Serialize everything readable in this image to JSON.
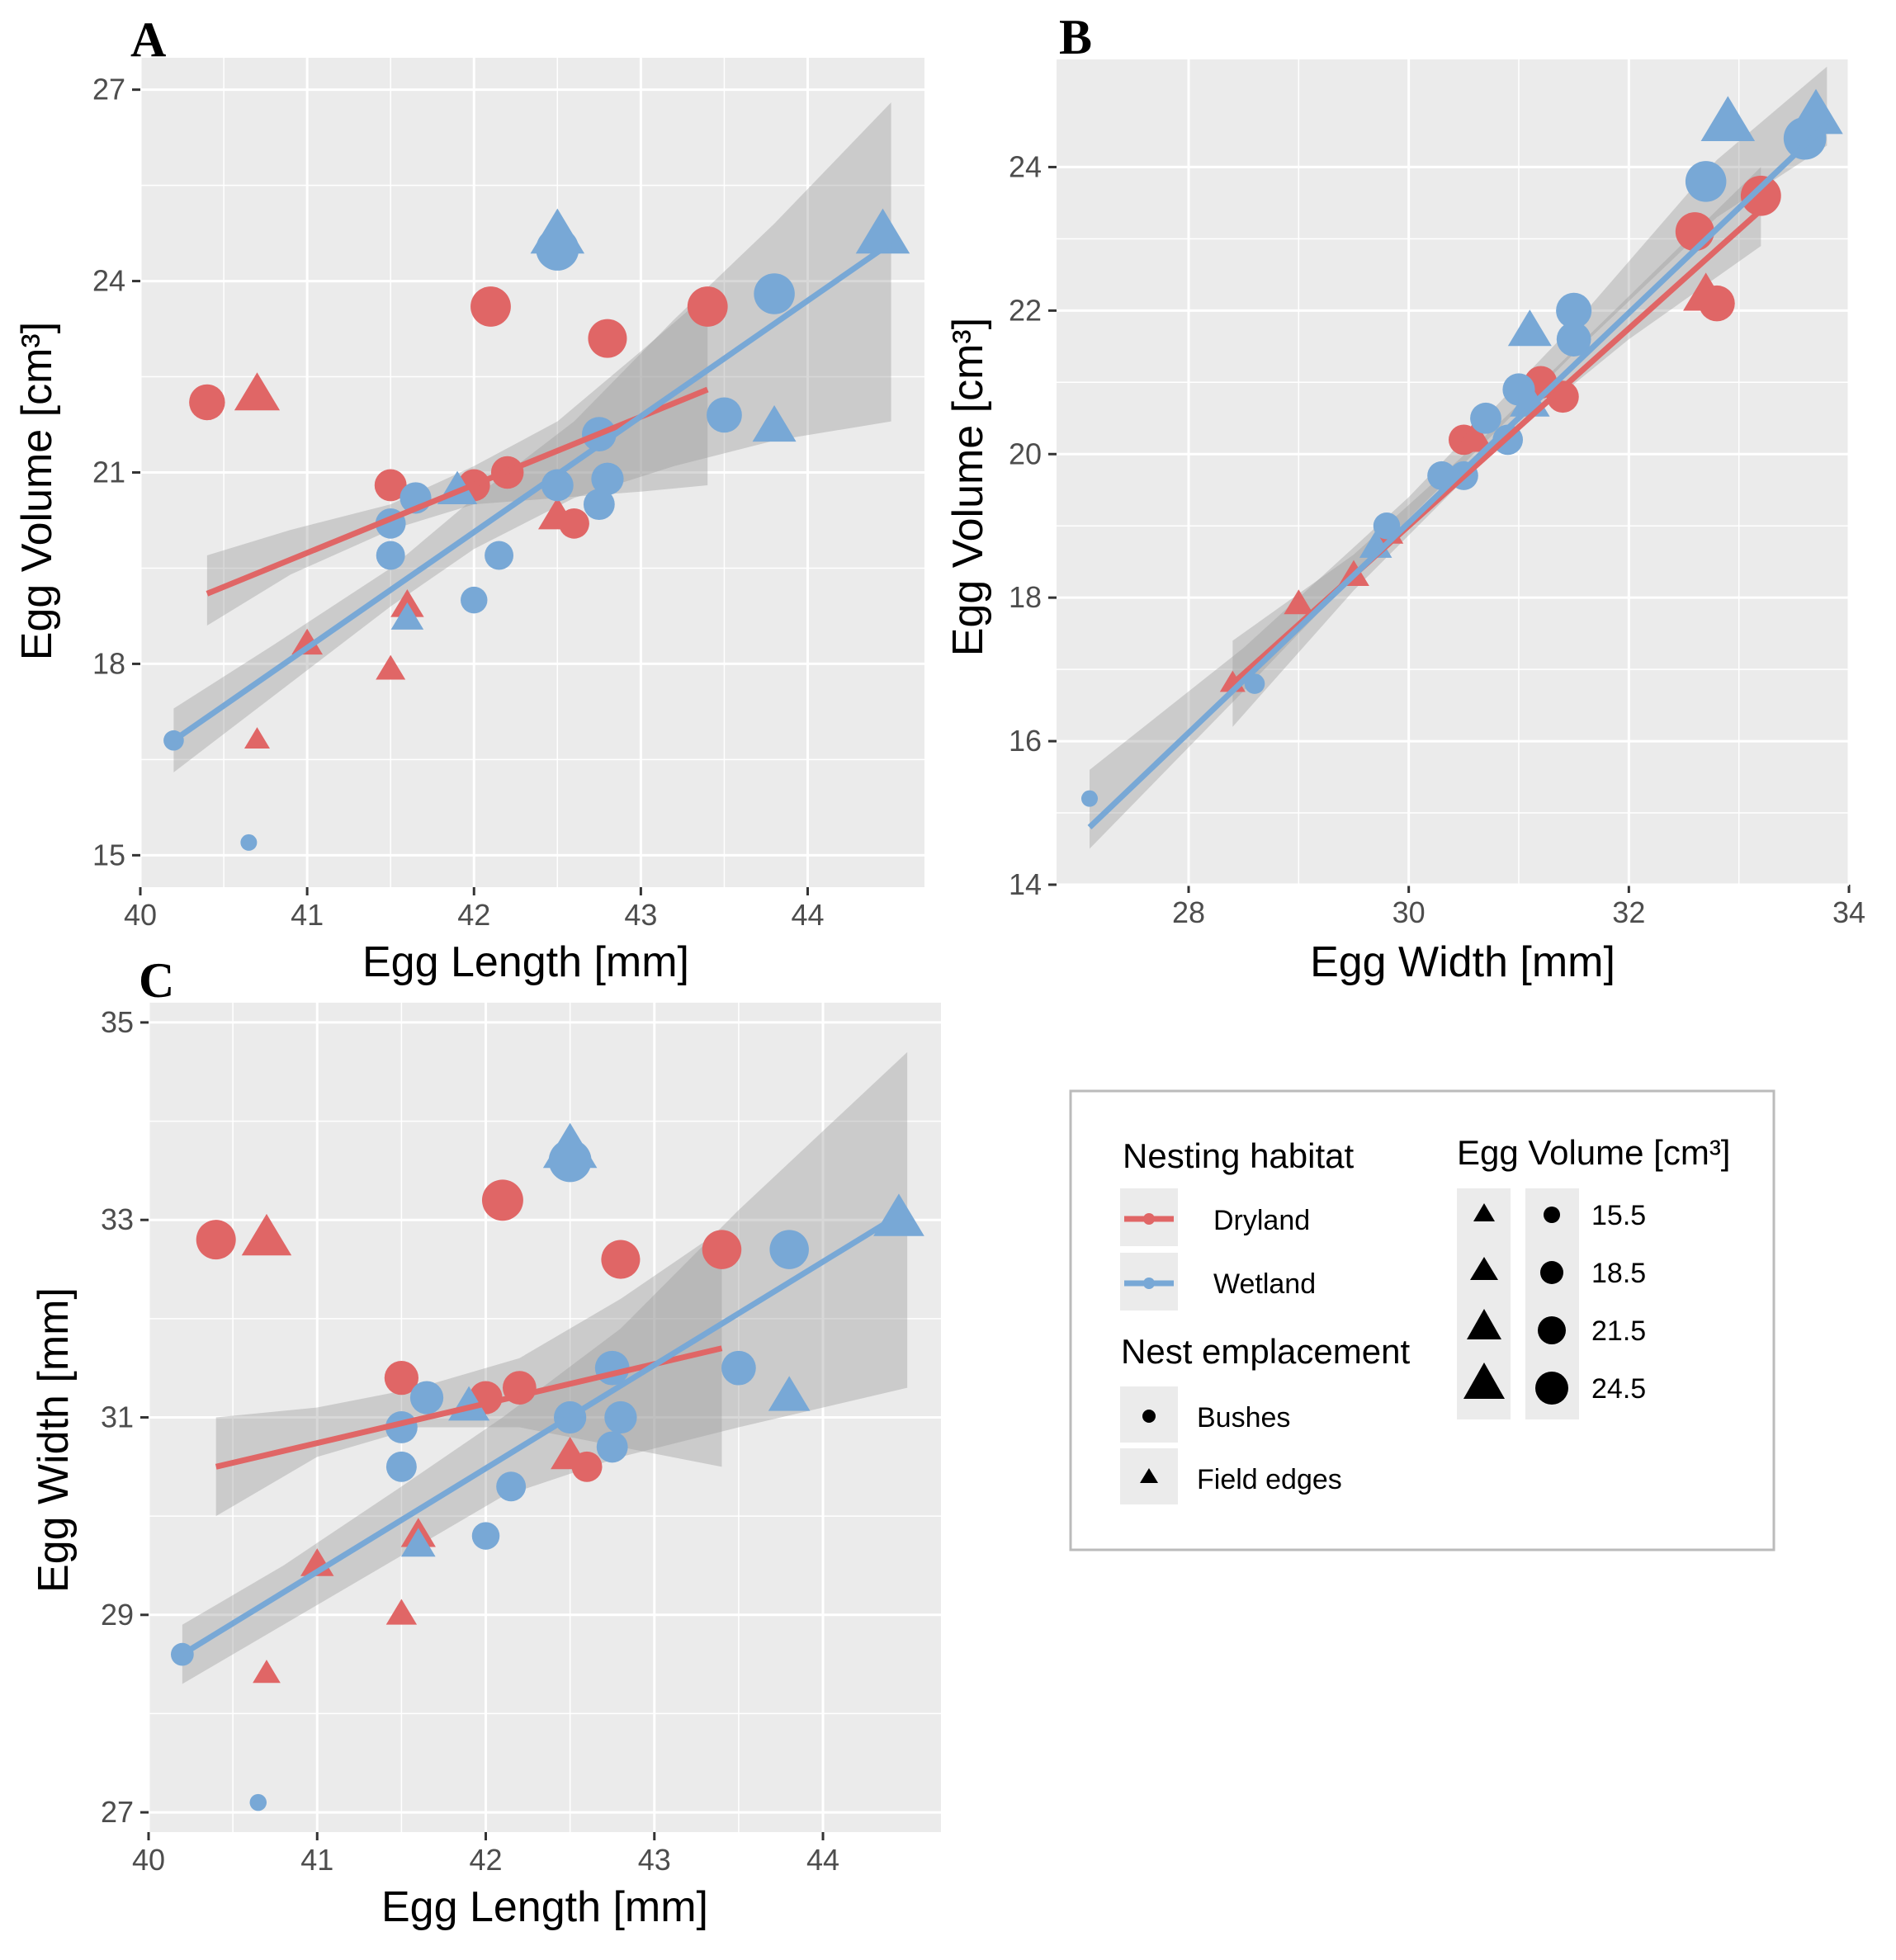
{
  "colors": {
    "Dryland": "#e06666",
    "Wetland": "#78a8d6",
    "panel_bg": "#ebebeb",
    "grid": "#ffffff",
    "ribbon": "#999999"
  },
  "size_scale": {
    "values": [
      15.5,
      18.5,
      21.5,
      24.5
    ]
  },
  "chart_data": [
    {
      "type": "scatter",
      "panel_label": "A",
      "xlabel": "Egg Length [mm]",
      "ylabel": "Egg Volume [cm³]",
      "xlim": [
        40,
        44.7
      ],
      "ylim": [
        14.5,
        27.5
      ],
      "xticks": [
        40,
        41,
        42,
        43,
        44
      ],
      "yticks": [
        15,
        18,
        21,
        24,
        27
      ],
      "points": [
        {
          "x": 40.4,
          "y": 22.1,
          "habitat": "Dryland",
          "shape": "circle"
        },
        {
          "x": 40.7,
          "y": 22.2,
          "habitat": "Dryland",
          "shape": "triangle"
        },
        {
          "x": 40.7,
          "y": 16.8,
          "habitat": "Dryland",
          "shape": "triangle"
        },
        {
          "x": 41.0,
          "y": 18.3,
          "habitat": "Dryland",
          "shape": "triangle"
        },
        {
          "x": 41.5,
          "y": 17.9,
          "habitat": "Dryland",
          "shape": "triangle"
        },
        {
          "x": 41.5,
          "y": 20.8,
          "habitat": "Dryland",
          "shape": "circle"
        },
        {
          "x": 41.6,
          "y": 18.9,
          "habitat": "Dryland",
          "shape": "triangle"
        },
        {
          "x": 42.0,
          "y": 20.8,
          "habitat": "Dryland",
          "shape": "circle"
        },
        {
          "x": 42.1,
          "y": 23.6,
          "habitat": "Dryland",
          "shape": "circle"
        },
        {
          "x": 42.2,
          "y": 21.0,
          "habitat": "Dryland",
          "shape": "circle"
        },
        {
          "x": 42.5,
          "y": 20.3,
          "habitat": "Dryland",
          "shape": "triangle"
        },
        {
          "x": 42.6,
          "y": 20.2,
          "habitat": "Dryland",
          "shape": "circle"
        },
        {
          "x": 42.8,
          "y": 23.1,
          "habitat": "Dryland",
          "shape": "circle"
        },
        {
          "x": 43.4,
          "y": 23.6,
          "habitat": "Dryland",
          "shape": "circle"
        },
        {
          "x": 40.2,
          "y": 16.8,
          "habitat": "Wetland",
          "shape": "circle"
        },
        {
          "x": 40.65,
          "y": 15.2,
          "habitat": "Wetland",
          "shape": "circle"
        },
        {
          "x": 41.5,
          "y": 19.7,
          "habitat": "Wetland",
          "shape": "circle"
        },
        {
          "x": 41.5,
          "y": 20.2,
          "habitat": "Wetland",
          "shape": "circle"
        },
        {
          "x": 41.6,
          "y": 18.7,
          "habitat": "Wetland",
          "shape": "triangle"
        },
        {
          "x": 41.65,
          "y": 20.6,
          "habitat": "Wetland",
          "shape": "circle"
        },
        {
          "x": 41.9,
          "y": 20.7,
          "habitat": "Wetland",
          "shape": "triangle"
        },
        {
          "x": 42.0,
          "y": 19.0,
          "habitat": "Wetland",
          "shape": "circle"
        },
        {
          "x": 42.15,
          "y": 19.7,
          "habitat": "Wetland",
          "shape": "circle"
        },
        {
          "x": 42.5,
          "y": 20.8,
          "habitat": "Wetland",
          "shape": "circle"
        },
        {
          "x": 42.5,
          "y": 24.5,
          "habitat": "Wetland",
          "shape": "circle"
        },
        {
          "x": 42.5,
          "y": 24.7,
          "habitat": "Wetland",
          "shape": "triangle"
        },
        {
          "x": 42.75,
          "y": 20.5,
          "habitat": "Wetland",
          "shape": "circle"
        },
        {
          "x": 42.75,
          "y": 21.6,
          "habitat": "Wetland",
          "shape": "circle"
        },
        {
          "x": 42.8,
          "y": 20.9,
          "habitat": "Wetland",
          "shape": "circle"
        },
        {
          "x": 43.5,
          "y": 21.9,
          "habitat": "Wetland",
          "shape": "circle"
        },
        {
          "x": 43.8,
          "y": 21.7,
          "habitat": "Wetland",
          "shape": "triangle"
        },
        {
          "x": 43.8,
          "y": 23.8,
          "habitat": "Wetland",
          "shape": "circle"
        },
        {
          "x": 44.45,
          "y": 24.7,
          "habitat": "Wetland",
          "shape": "triangle"
        }
      ],
      "fits": [
        {
          "habitat": "Dryland",
          "x": [
            40.4,
            43.4
          ],
          "y": [
            19.1,
            22.3
          ],
          "ribbon": [
            {
              "x": 40.4,
              "lo": 18.6,
              "hi": 19.7
            },
            {
              "x": 40.9,
              "lo": 19.4,
              "hi": 20.1
            },
            {
              "x": 41.5,
              "lo": 20.1,
              "hi": 20.5
            },
            {
              "x": 42.0,
              "lo": 20.5,
              "hi": 21.1
            },
            {
              "x": 42.5,
              "lo": 20.6,
              "hi": 21.8
            },
            {
              "x": 43.0,
              "lo": 20.7,
              "hi": 22.9
            },
            {
              "x": 43.4,
              "lo": 20.8,
              "hi": 23.8
            }
          ]
        },
        {
          "habitat": "Wetland",
          "x": [
            40.2,
            44.5
          ],
          "y": [
            16.8,
            24.6
          ],
          "ribbon": [
            {
              "x": 40.2,
              "lo": 16.3,
              "hi": 17.3
            },
            {
              "x": 40.8,
              "lo": 17.5,
              "hi": 18.3
            },
            {
              "x": 41.5,
              "lo": 18.9,
              "hi": 19.5
            },
            {
              "x": 42.0,
              "lo": 19.8,
              "hi": 20.6
            },
            {
              "x": 42.6,
              "lo": 20.6,
              "hi": 21.8
            },
            {
              "x": 43.2,
              "lo": 21.1,
              "hi": 23.4
            },
            {
              "x": 43.8,
              "lo": 21.5,
              "hi": 24.9
            },
            {
              "x": 44.5,
              "lo": 21.8,
              "hi": 26.8
            }
          ]
        }
      ]
    },
    {
      "type": "scatter",
      "panel_label": "B",
      "xlabel": "Egg Width [mm]",
      "ylabel": "Egg Volume [cm³]",
      "xlim": [
        26.8,
        34.0
      ],
      "ylim": [
        14,
        25.5
      ],
      "xticks": [
        28,
        30,
        32,
        34
      ],
      "yticks": [
        14,
        16,
        18,
        20,
        22,
        24
      ],
      "points": [
        {
          "x": 28.4,
          "y": 16.8,
          "habitat": "Dryland",
          "shape": "triangle"
        },
        {
          "x": 29.0,
          "y": 17.9,
          "habitat": "Dryland",
          "shape": "triangle"
        },
        {
          "x": 29.5,
          "y": 18.3,
          "habitat": "Dryland",
          "shape": "triangle"
        },
        {
          "x": 29.8,
          "y": 18.9,
          "habitat": "Dryland",
          "shape": "triangle"
        },
        {
          "x": 30.5,
          "y": 20.2,
          "habitat": "Dryland",
          "shape": "circle"
        },
        {
          "x": 30.6,
          "y": 20.2,
          "habitat": "Dryland",
          "shape": "triangle"
        },
        {
          "x": 31.2,
          "y": 21.0,
          "habitat": "Dryland",
          "shape": "circle"
        },
        {
          "x": 31.4,
          "y": 20.8,
          "habitat": "Dryland",
          "shape": "circle"
        },
        {
          "x": 32.6,
          "y": 23.1,
          "habitat": "Dryland",
          "shape": "circle"
        },
        {
          "x": 32.7,
          "y": 22.2,
          "habitat": "Dryland",
          "shape": "triangle"
        },
        {
          "x": 32.8,
          "y": 22.1,
          "habitat": "Dryland",
          "shape": "circle"
        },
        {
          "x": 33.2,
          "y": 23.6,
          "habitat": "Dryland",
          "shape": "circle"
        },
        {
          "x": 27.1,
          "y": 15.2,
          "habitat": "Wetland",
          "shape": "circle"
        },
        {
          "x": 28.6,
          "y": 16.8,
          "habitat": "Wetland",
          "shape": "circle"
        },
        {
          "x": 29.7,
          "y": 18.7,
          "habitat": "Wetland",
          "shape": "triangle"
        },
        {
          "x": 29.8,
          "y": 19.0,
          "habitat": "Wetland",
          "shape": "circle"
        },
        {
          "x": 30.3,
          "y": 19.7,
          "habitat": "Wetland",
          "shape": "circle"
        },
        {
          "x": 30.5,
          "y": 19.7,
          "habitat": "Wetland",
          "shape": "circle"
        },
        {
          "x": 30.7,
          "y": 20.5,
          "habitat": "Wetland",
          "shape": "circle"
        },
        {
          "x": 30.9,
          "y": 20.2,
          "habitat": "Wetland",
          "shape": "circle"
        },
        {
          "x": 31.0,
          "y": 20.9,
          "habitat": "Wetland",
          "shape": "circle"
        },
        {
          "x": 31.1,
          "y": 20.7,
          "habitat": "Wetland",
          "shape": "triangle"
        },
        {
          "x": 31.1,
          "y": 21.7,
          "habitat": "Wetland",
          "shape": "triangle"
        },
        {
          "x": 31.5,
          "y": 21.6,
          "habitat": "Wetland",
          "shape": "circle"
        },
        {
          "x": 31.5,
          "y": 22.0,
          "habitat": "Wetland",
          "shape": "circle"
        },
        {
          "x": 32.7,
          "y": 23.8,
          "habitat": "Wetland",
          "shape": "circle"
        },
        {
          "x": 32.9,
          "y": 24.6,
          "habitat": "Wetland",
          "shape": "triangle"
        },
        {
          "x": 33.6,
          "y": 24.4,
          "habitat": "Wetland",
          "shape": "circle"
        },
        {
          "x": 33.7,
          "y": 24.7,
          "habitat": "Wetland",
          "shape": "triangle"
        }
      ],
      "fits": [
        {
          "habitat": "Dryland",
          "x": [
            28.4,
            33.2
          ],
          "y": [
            16.8,
            23.4
          ],
          "ribbon": [
            {
              "x": 28.4,
              "lo": 16.2,
              "hi": 17.4
            },
            {
              "x": 29.5,
              "lo": 18.1,
              "hi": 18.6
            },
            {
              "x": 30.8,
              "lo": 20.1,
              "hi": 20.4
            },
            {
              "x": 32.0,
              "lo": 21.6,
              "hi": 22.2
            },
            {
              "x": 33.2,
              "lo": 22.9,
              "hi": 24.0
            }
          ]
        },
        {
          "habitat": "Wetland",
          "x": [
            27.1,
            33.8
          ],
          "y": [
            14.8,
            24.6
          ],
          "ribbon": [
            {
              "x": 27.1,
              "lo": 14.5,
              "hi": 15.6
            },
            {
              "x": 28.5,
              "lo": 16.7,
              "hi": 17.3
            },
            {
              "x": 30.0,
              "lo": 19.1,
              "hi": 19.4
            },
            {
              "x": 31.5,
              "lo": 21.4,
              "hi": 21.8
            },
            {
              "x": 32.8,
              "lo": 23.3,
              "hi": 24.1
            },
            {
              "x": 33.8,
              "lo": 24.3,
              "hi": 25.4
            }
          ]
        }
      ]
    },
    {
      "type": "scatter",
      "panel_label": "C",
      "xlabel": "Egg Length [mm]",
      "ylabel": "Egg Width [mm]",
      "xlim": [
        40,
        44.7
      ],
      "ylim": [
        26.8,
        35.2
      ],
      "xticks": [
        40,
        41,
        42,
        43,
        44
      ],
      "yticks": [
        27,
        29,
        31,
        33,
        35
      ],
      "points": [
        {
          "x": 40.4,
          "y": 32.8,
          "habitat": "Dryland",
          "shape": "circle"
        },
        {
          "x": 40.7,
          "y": 32.8,
          "habitat": "Dryland",
          "shape": "triangle"
        },
        {
          "x": 40.7,
          "y": 28.4,
          "habitat": "Dryland",
          "shape": "triangle"
        },
        {
          "x": 41.0,
          "y": 29.5,
          "habitat": "Dryland",
          "shape": "triangle"
        },
        {
          "x": 41.5,
          "y": 29.0,
          "habitat": "Dryland",
          "shape": "triangle"
        },
        {
          "x": 41.5,
          "y": 31.4,
          "habitat": "Dryland",
          "shape": "circle"
        },
        {
          "x": 41.6,
          "y": 29.8,
          "habitat": "Dryland",
          "shape": "triangle"
        },
        {
          "x": 42.0,
          "y": 31.2,
          "habitat": "Dryland",
          "shape": "circle"
        },
        {
          "x": 42.1,
          "y": 33.2,
          "habitat": "Dryland",
          "shape": "circle"
        },
        {
          "x": 42.2,
          "y": 31.3,
          "habitat": "Dryland",
          "shape": "circle"
        },
        {
          "x": 42.5,
          "y": 30.6,
          "habitat": "Dryland",
          "shape": "triangle"
        },
        {
          "x": 42.6,
          "y": 30.5,
          "habitat": "Dryland",
          "shape": "circle"
        },
        {
          "x": 42.8,
          "y": 32.6,
          "habitat": "Dryland",
          "shape": "circle"
        },
        {
          "x": 43.4,
          "y": 32.7,
          "habitat": "Dryland",
          "shape": "circle"
        },
        {
          "x": 40.2,
          "y": 28.6,
          "habitat": "Wetland",
          "shape": "circle"
        },
        {
          "x": 40.65,
          "y": 27.1,
          "habitat": "Wetland",
          "shape": "circle"
        },
        {
          "x": 41.5,
          "y": 30.5,
          "habitat": "Wetland",
          "shape": "circle"
        },
        {
          "x": 41.5,
          "y": 30.9,
          "habitat": "Wetland",
          "shape": "circle"
        },
        {
          "x": 41.6,
          "y": 29.7,
          "habitat": "Wetland",
          "shape": "triangle"
        },
        {
          "x": 41.65,
          "y": 31.2,
          "habitat": "Wetland",
          "shape": "circle"
        },
        {
          "x": 41.9,
          "y": 31.1,
          "habitat": "Wetland",
          "shape": "triangle"
        },
        {
          "x": 42.0,
          "y": 29.8,
          "habitat": "Wetland",
          "shape": "circle"
        },
        {
          "x": 42.15,
          "y": 30.3,
          "habitat": "Wetland",
          "shape": "circle"
        },
        {
          "x": 42.5,
          "y": 31.0,
          "habitat": "Wetland",
          "shape": "circle"
        },
        {
          "x": 42.5,
          "y": 33.6,
          "habitat": "Wetland",
          "shape": "circle"
        },
        {
          "x": 42.5,
          "y": 33.7,
          "habitat": "Wetland",
          "shape": "triangle"
        },
        {
          "x": 42.75,
          "y": 30.7,
          "habitat": "Wetland",
          "shape": "circle"
        },
        {
          "x": 42.75,
          "y": 31.5,
          "habitat": "Wetland",
          "shape": "circle"
        },
        {
          "x": 42.8,
          "y": 31.0,
          "habitat": "Wetland",
          "shape": "circle"
        },
        {
          "x": 43.5,
          "y": 31.5,
          "habitat": "Wetland",
          "shape": "circle"
        },
        {
          "x": 43.8,
          "y": 31.2,
          "habitat": "Wetland",
          "shape": "triangle"
        },
        {
          "x": 43.8,
          "y": 32.7,
          "habitat": "Wetland",
          "shape": "circle"
        },
        {
          "x": 44.45,
          "y": 33.0,
          "habitat": "Wetland",
          "shape": "triangle"
        }
      ],
      "fits": [
        {
          "habitat": "Dryland",
          "x": [
            40.4,
            43.4
          ],
          "y": [
            30.5,
            31.7
          ],
          "ribbon": [
            {
              "x": 40.4,
              "lo": 30.0,
              "hi": 31.0
            },
            {
              "x": 41.0,
              "lo": 30.6,
              "hi": 31.1
            },
            {
              "x": 41.6,
              "lo": 30.9,
              "hi": 31.3
            },
            {
              "x": 42.2,
              "lo": 30.9,
              "hi": 31.6
            },
            {
              "x": 42.8,
              "lo": 30.7,
              "hi": 32.2
            },
            {
              "x": 43.4,
              "lo": 30.5,
              "hi": 32.9
            }
          ]
        },
        {
          "habitat": "Wetland",
          "x": [
            40.2,
            44.5
          ],
          "y": [
            28.6,
            33.1
          ],
          "ribbon": [
            {
              "x": 40.2,
              "lo": 28.3,
              "hi": 28.9
            },
            {
              "x": 40.8,
              "lo": 28.9,
              "hi": 29.5
            },
            {
              "x": 41.5,
              "lo": 29.6,
              "hi": 30.3
            },
            {
              "x": 42.1,
              "lo": 30.2,
              "hi": 31.0
            },
            {
              "x": 42.8,
              "lo": 30.6,
              "hi": 31.9
            },
            {
              "x": 43.5,
              "lo": 30.9,
              "hi": 33.1
            },
            {
              "x": 44.5,
              "lo": 31.3,
              "hi": 34.7
            }
          ]
        }
      ]
    }
  ],
  "legend": {
    "habitat_title": "Nesting habitat",
    "habitat_items": [
      {
        "label": "Dryland",
        "habitat": "Dryland"
      },
      {
        "label": "Wetland",
        "habitat": "Wetland"
      }
    ],
    "emplacement_title": "Nest emplacement",
    "emplacement_items": [
      {
        "label": "Bushes",
        "shape": "circle"
      },
      {
        "label": "Field edges",
        "shape": "triangle"
      }
    ],
    "size_title": "Egg Volume [cm³]",
    "size_labels": [
      "15.5",
      "18.5",
      "21.5",
      "24.5"
    ]
  }
}
